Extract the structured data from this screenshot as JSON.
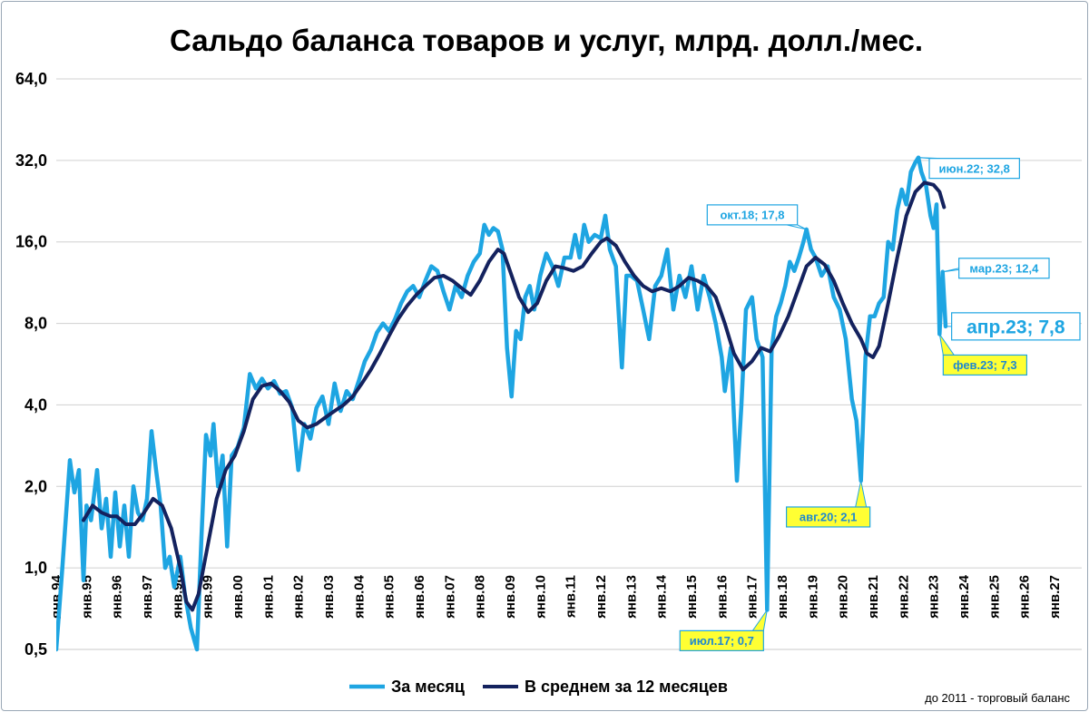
{
  "chart_data": {
    "type": "line",
    "title": "Сальдо баланса товаров и услуг, млрд. долл./мес.",
    "xlabel": "",
    "ylabel": "",
    "y_scale": "log2",
    "ylim": [
      0.5,
      64
    ],
    "yticks": [
      "0,5",
      "1,0",
      "2,0",
      "4,0",
      "8,0",
      "16,0",
      "32,0",
      "64,0"
    ],
    "ytick_values": [
      0.5,
      1,
      2,
      4,
      8,
      16,
      32,
      64
    ],
    "xticks": [
      "янв.94",
      "янв.95",
      "янв.96",
      "янв.97",
      "янв.98",
      "янв.99",
      "янв.00",
      "янв.01",
      "янв.02",
      "янв.03",
      "янв.04",
      "янв.05",
      "янв.06",
      "янв.07",
      "янв.08",
      "янв.09",
      "янв.10",
      "янв.11",
      "янв.12",
      "янв.13",
      "янв.14",
      "янв.15",
      "янв.16",
      "янв.17",
      "янв.18",
      "янв.19",
      "янв.20",
      "янв.21",
      "янв.22",
      "янв.23",
      "янв.24",
      "янв.25",
      "янв.26",
      "янв.27"
    ],
    "xtick_years": [
      1994,
      1995,
      1996,
      1997,
      1998,
      1999,
      2000,
      2001,
      2002,
      2003,
      2004,
      2005,
      2006,
      2007,
      2008,
      2009,
      2010,
      2011,
      2012,
      2013,
      2014,
      2015,
      2016,
      2017,
      2018,
      2019,
      2020,
      2021,
      2022,
      2023,
      2024,
      2025,
      2026,
      2027
    ],
    "xlim_years": [
      1994,
      2027.9
    ],
    "grid": true,
    "legend_position": "bottom",
    "footnote": "до 2011 - торговый баланс",
    "series": [
      {
        "name": "За месяц",
        "color": "#1ea5e2",
        "width": 4.5,
        "points": [
          [
            1994.0,
            0.5
          ],
          [
            1994.2,
            1.0
          ],
          [
            1994.45,
            2.5
          ],
          [
            1994.6,
            1.9
          ],
          [
            1994.75,
            2.3
          ],
          [
            1994.9,
            0.9
          ],
          [
            1995.0,
            1.7
          ],
          [
            1995.15,
            1.5
          ],
          [
            1995.35,
            2.3
          ],
          [
            1995.5,
            1.4
          ],
          [
            1995.65,
            1.8
          ],
          [
            1995.8,
            1.1
          ],
          [
            1995.95,
            1.9
          ],
          [
            1996.1,
            1.2
          ],
          [
            1996.25,
            1.7
          ],
          [
            1996.4,
            1.1
          ],
          [
            1996.55,
            2.0
          ],
          [
            1996.7,
            1.6
          ],
          [
            1996.85,
            1.5
          ],
          [
            1997.0,
            1.8
          ],
          [
            1997.15,
            3.2
          ],
          [
            1997.3,
            2.3
          ],
          [
            1997.45,
            1.7
          ],
          [
            1997.6,
            1.0
          ],
          [
            1997.75,
            1.1
          ],
          [
            1997.9,
            0.85
          ],
          [
            1998.1,
            1.1
          ],
          [
            1998.25,
            0.8
          ],
          [
            1998.45,
            0.6
          ],
          [
            1998.65,
            0.5
          ],
          [
            1998.8,
            1.3
          ],
          [
            1998.95,
            3.1
          ],
          [
            1999.1,
            2.6
          ],
          [
            1999.2,
            3.4
          ],
          [
            1999.35,
            2.0
          ],
          [
            1999.5,
            2.6
          ],
          [
            1999.65,
            1.2
          ],
          [
            1999.8,
            2.6
          ],
          [
            2000.0,
            2.8
          ],
          [
            2000.2,
            3.3
          ],
          [
            2000.4,
            5.2
          ],
          [
            2000.6,
            4.6
          ],
          [
            2000.8,
            5.0
          ],
          [
            2001.0,
            4.6
          ],
          [
            2001.2,
            4.9
          ],
          [
            2001.4,
            4.4
          ],
          [
            2001.6,
            4.5
          ],
          [
            2001.8,
            3.9
          ],
          [
            2002.0,
            2.3
          ],
          [
            2002.2,
            3.4
          ],
          [
            2002.4,
            3.0
          ],
          [
            2002.6,
            3.9
          ],
          [
            2002.8,
            4.3
          ],
          [
            2003.0,
            3.4
          ],
          [
            2003.2,
            4.8
          ],
          [
            2003.4,
            3.8
          ],
          [
            2003.6,
            4.5
          ],
          [
            2003.8,
            4.2
          ],
          [
            2004.0,
            4.9
          ],
          [
            2004.2,
            5.8
          ],
          [
            2004.4,
            6.4
          ],
          [
            2004.6,
            7.4
          ],
          [
            2004.8,
            8.0
          ],
          [
            2005.0,
            7.5
          ],
          [
            2005.2,
            8.3
          ],
          [
            2005.4,
            9.5
          ],
          [
            2005.6,
            10.5
          ],
          [
            2005.8,
            11.0
          ],
          [
            2006.0,
            10.0
          ],
          [
            2006.2,
            11.5
          ],
          [
            2006.4,
            13.0
          ],
          [
            2006.6,
            12.5
          ],
          [
            2006.8,
            10.5
          ],
          [
            2007.0,
            9.0
          ],
          [
            2007.2,
            11.0
          ],
          [
            2007.4,
            10.0
          ],
          [
            2007.6,
            12.0
          ],
          [
            2007.8,
            13.5
          ],
          [
            2008.0,
            14.5
          ],
          [
            2008.15,
            18.5
          ],
          [
            2008.3,
            17.0
          ],
          [
            2008.45,
            18.0
          ],
          [
            2008.6,
            17.5
          ],
          [
            2008.75,
            15.0
          ],
          [
            2008.9,
            6.5
          ],
          [
            2009.05,
            4.3
          ],
          [
            2009.2,
            7.5
          ],
          [
            2009.35,
            7.0
          ],
          [
            2009.5,
            10.0
          ],
          [
            2009.65,
            11.0
          ],
          [
            2009.8,
            9.0
          ],
          [
            2010.0,
            12.0
          ],
          [
            2010.2,
            14.5
          ],
          [
            2010.4,
            13.0
          ],
          [
            2010.6,
            11.0
          ],
          [
            2010.8,
            14.0
          ],
          [
            2011.0,
            14.0
          ],
          [
            2011.15,
            17.0
          ],
          [
            2011.3,
            14.0
          ],
          [
            2011.45,
            18.5
          ],
          [
            2011.6,
            16.0
          ],
          [
            2011.8,
            17.0
          ],
          [
            2012.0,
            16.5
          ],
          [
            2012.15,
            20.0
          ],
          [
            2012.3,
            15.0
          ],
          [
            2012.5,
            13.0
          ],
          [
            2012.7,
            5.5
          ],
          [
            2012.85,
            12.0
          ],
          [
            2013.0,
            12.0
          ],
          [
            2013.2,
            11.5
          ],
          [
            2013.4,
            9.0
          ],
          [
            2013.6,
            7.0
          ],
          [
            2013.8,
            11.0
          ],
          [
            2014.0,
            12.0
          ],
          [
            2014.2,
            15.0
          ],
          [
            2014.4,
            9.0
          ],
          [
            2014.6,
            12.0
          ],
          [
            2014.8,
            10.0
          ],
          [
            2015.0,
            13.0
          ],
          [
            2015.2,
            9.0
          ],
          [
            2015.4,
            12.0
          ],
          [
            2015.6,
            10.0
          ],
          [
            2015.8,
            8.0
          ],
          [
            2016.0,
            6.0
          ],
          [
            2016.1,
            4.5
          ],
          [
            2016.3,
            6.5
          ],
          [
            2016.5,
            2.1
          ],
          [
            2016.65,
            4.0
          ],
          [
            2016.8,
            9.0
          ],
          [
            2017.0,
            10.0
          ],
          [
            2017.15,
            7.0
          ],
          [
            2017.35,
            6.0
          ],
          [
            2017.5,
            0.7
          ],
          [
            2017.65,
            6.5
          ],
          [
            2017.8,
            8.5
          ],
          [
            2017.95,
            9.5
          ],
          [
            2018.1,
            11.0
          ],
          [
            2018.25,
            13.5
          ],
          [
            2018.4,
            12.5
          ],
          [
            2018.55,
            14.0
          ],
          [
            2018.7,
            16.0
          ],
          [
            2018.8,
            17.8
          ],
          [
            2018.95,
            15.0
          ],
          [
            2019.1,
            14.0
          ],
          [
            2019.3,
            12.0
          ],
          [
            2019.5,
            13.0
          ],
          [
            2019.7,
            10.0
          ],
          [
            2019.9,
            9.0
          ],
          [
            2020.1,
            7.0
          ],
          [
            2020.3,
            4.2
          ],
          [
            2020.45,
            3.5
          ],
          [
            2020.6,
            2.1
          ],
          [
            2020.75,
            6.0
          ],
          [
            2020.9,
            8.5
          ],
          [
            2021.05,
            8.5
          ],
          [
            2021.2,
            9.5
          ],
          [
            2021.35,
            10.0
          ],
          [
            2021.5,
            16.0
          ],
          [
            2021.65,
            15.0
          ],
          [
            2021.8,
            21.0
          ],
          [
            2021.95,
            25.0
          ],
          [
            2022.1,
            22.0
          ],
          [
            2022.25,
            29.0
          ],
          [
            2022.4,
            31.5
          ],
          [
            2022.5,
            32.8
          ],
          [
            2022.6,
            29.0
          ],
          [
            2022.75,
            26.0
          ],
          [
            2022.9,
            20.0
          ],
          [
            2023.0,
            18.0
          ],
          [
            2023.1,
            22.0
          ],
          [
            2023.2,
            7.3
          ],
          [
            2023.3,
            12.4
          ],
          [
            2023.4,
            7.8
          ]
        ]
      },
      {
        "name": "В среднем за 12 месяцев",
        "color": "#14225e",
        "width": 4.0,
        "points": [
          [
            1994.9,
            1.5
          ],
          [
            1995.2,
            1.7
          ],
          [
            1995.5,
            1.6
          ],
          [
            1995.8,
            1.55
          ],
          [
            1996.0,
            1.55
          ],
          [
            1996.3,
            1.45
          ],
          [
            1996.6,
            1.45
          ],
          [
            1996.9,
            1.6
          ],
          [
            1997.2,
            1.8
          ],
          [
            1997.5,
            1.7
          ],
          [
            1997.8,
            1.4
          ],
          [
            1998.1,
            1.0
          ],
          [
            1998.3,
            0.75
          ],
          [
            1998.5,
            0.7
          ],
          [
            1998.7,
            0.8
          ],
          [
            1999.0,
            1.2
          ],
          [
            1999.3,
            1.8
          ],
          [
            1999.6,
            2.3
          ],
          [
            1999.9,
            2.6
          ],
          [
            2000.2,
            3.2
          ],
          [
            2000.5,
            4.2
          ],
          [
            2000.8,
            4.7
          ],
          [
            2001.1,
            4.8
          ],
          [
            2001.4,
            4.5
          ],
          [
            2001.7,
            4.1
          ],
          [
            2002.0,
            3.5
          ],
          [
            2002.3,
            3.3
          ],
          [
            2002.6,
            3.4
          ],
          [
            2002.9,
            3.6
          ],
          [
            2003.2,
            3.8
          ],
          [
            2003.5,
            4.0
          ],
          [
            2003.8,
            4.3
          ],
          [
            2004.1,
            4.8
          ],
          [
            2004.4,
            5.4
          ],
          [
            2004.7,
            6.2
          ],
          [
            2005.0,
            7.2
          ],
          [
            2005.3,
            8.3
          ],
          [
            2005.6,
            9.3
          ],
          [
            2005.9,
            10.2
          ],
          [
            2006.2,
            11.0
          ],
          [
            2006.5,
            11.8
          ],
          [
            2006.8,
            12.0
          ],
          [
            2007.1,
            11.5
          ],
          [
            2007.4,
            10.8
          ],
          [
            2007.7,
            10.2
          ],
          [
            2008.0,
            11.5
          ],
          [
            2008.3,
            13.5
          ],
          [
            2008.6,
            15.0
          ],
          [
            2008.8,
            14.5
          ],
          [
            2009.0,
            12.5
          ],
          [
            2009.3,
            10.0
          ],
          [
            2009.6,
            8.8
          ],
          [
            2009.9,
            9.5
          ],
          [
            2010.2,
            11.5
          ],
          [
            2010.5,
            13.0
          ],
          [
            2010.8,
            12.8
          ],
          [
            2011.1,
            12.5
          ],
          [
            2011.4,
            13.0
          ],
          [
            2011.7,
            14.5
          ],
          [
            2012.0,
            16.0
          ],
          [
            2012.2,
            16.5
          ],
          [
            2012.5,
            15.5
          ],
          [
            2012.8,
            13.5
          ],
          [
            2013.1,
            12.0
          ],
          [
            2013.4,
            11.0
          ],
          [
            2013.7,
            10.5
          ],
          [
            2014.0,
            10.8
          ],
          [
            2014.3,
            10.5
          ],
          [
            2014.6,
            11.0
          ],
          [
            2014.9,
            11.8
          ],
          [
            2015.2,
            11.5
          ],
          [
            2015.5,
            11.0
          ],
          [
            2015.8,
            10.0
          ],
          [
            2016.1,
            8.0
          ],
          [
            2016.4,
            6.2
          ],
          [
            2016.7,
            5.4
          ],
          [
            2017.0,
            5.8
          ],
          [
            2017.3,
            6.5
          ],
          [
            2017.6,
            6.3
          ],
          [
            2017.9,
            7.2
          ],
          [
            2018.2,
            8.5
          ],
          [
            2018.5,
            10.5
          ],
          [
            2018.8,
            13.0
          ],
          [
            2019.1,
            14.0
          ],
          [
            2019.4,
            13.2
          ],
          [
            2019.7,
            11.5
          ],
          [
            2020.0,
            9.5
          ],
          [
            2020.3,
            8.0
          ],
          [
            2020.6,
            7.0
          ],
          [
            2020.8,
            6.2
          ],
          [
            2021.0,
            6.0
          ],
          [
            2021.2,
            6.6
          ],
          [
            2021.5,
            9.5
          ],
          [
            2021.8,
            14.0
          ],
          [
            2022.1,
            20.0
          ],
          [
            2022.4,
            24.5
          ],
          [
            2022.7,
            26.5
          ],
          [
            2023.0,
            26.0
          ],
          [
            2023.2,
            24.5
          ],
          [
            2023.35,
            21.5
          ]
        ]
      }
    ],
    "annotations": [
      {
        "text": "июн.22; 32,8",
        "x": 2022.5,
        "y": 32.8,
        "style": "white",
        "anchor": "right",
        "dx": 12,
        "dy": 12
      },
      {
        "text": "окт.18; 17,8",
        "x": 2018.8,
        "y": 17.8,
        "style": "white",
        "anchor": "left",
        "dx": -10,
        "dy": -16
      },
      {
        "text": "мар.23; 12,4",
        "x": 2023.3,
        "y": 12.4,
        "style": "white",
        "anchor": "right",
        "dx": 18,
        "dy": -4
      },
      {
        "text": "апр.23; 7,8",
        "x": 2023.4,
        "y": 7.8,
        "style": "white-big",
        "anchor": "right",
        "dx": 44,
        "dy": 0
      },
      {
        "text": "фев.23; 7,3",
        "x": 2023.2,
        "y": 7.3,
        "style": "yellow",
        "anchor": "right",
        "dx": 4,
        "dy": 34
      },
      {
        "text": "авг.20; 2,1",
        "x": 2020.6,
        "y": 2.1,
        "style": "yellow",
        "anchor": "left",
        "dx": 10,
        "dy": 40
      },
      {
        "text": "июл.17; 0,7",
        "x": 2017.5,
        "y": 0.7,
        "style": "yellow",
        "anchor": "left",
        "dx": -4,
        "dy": 34
      }
    ]
  }
}
